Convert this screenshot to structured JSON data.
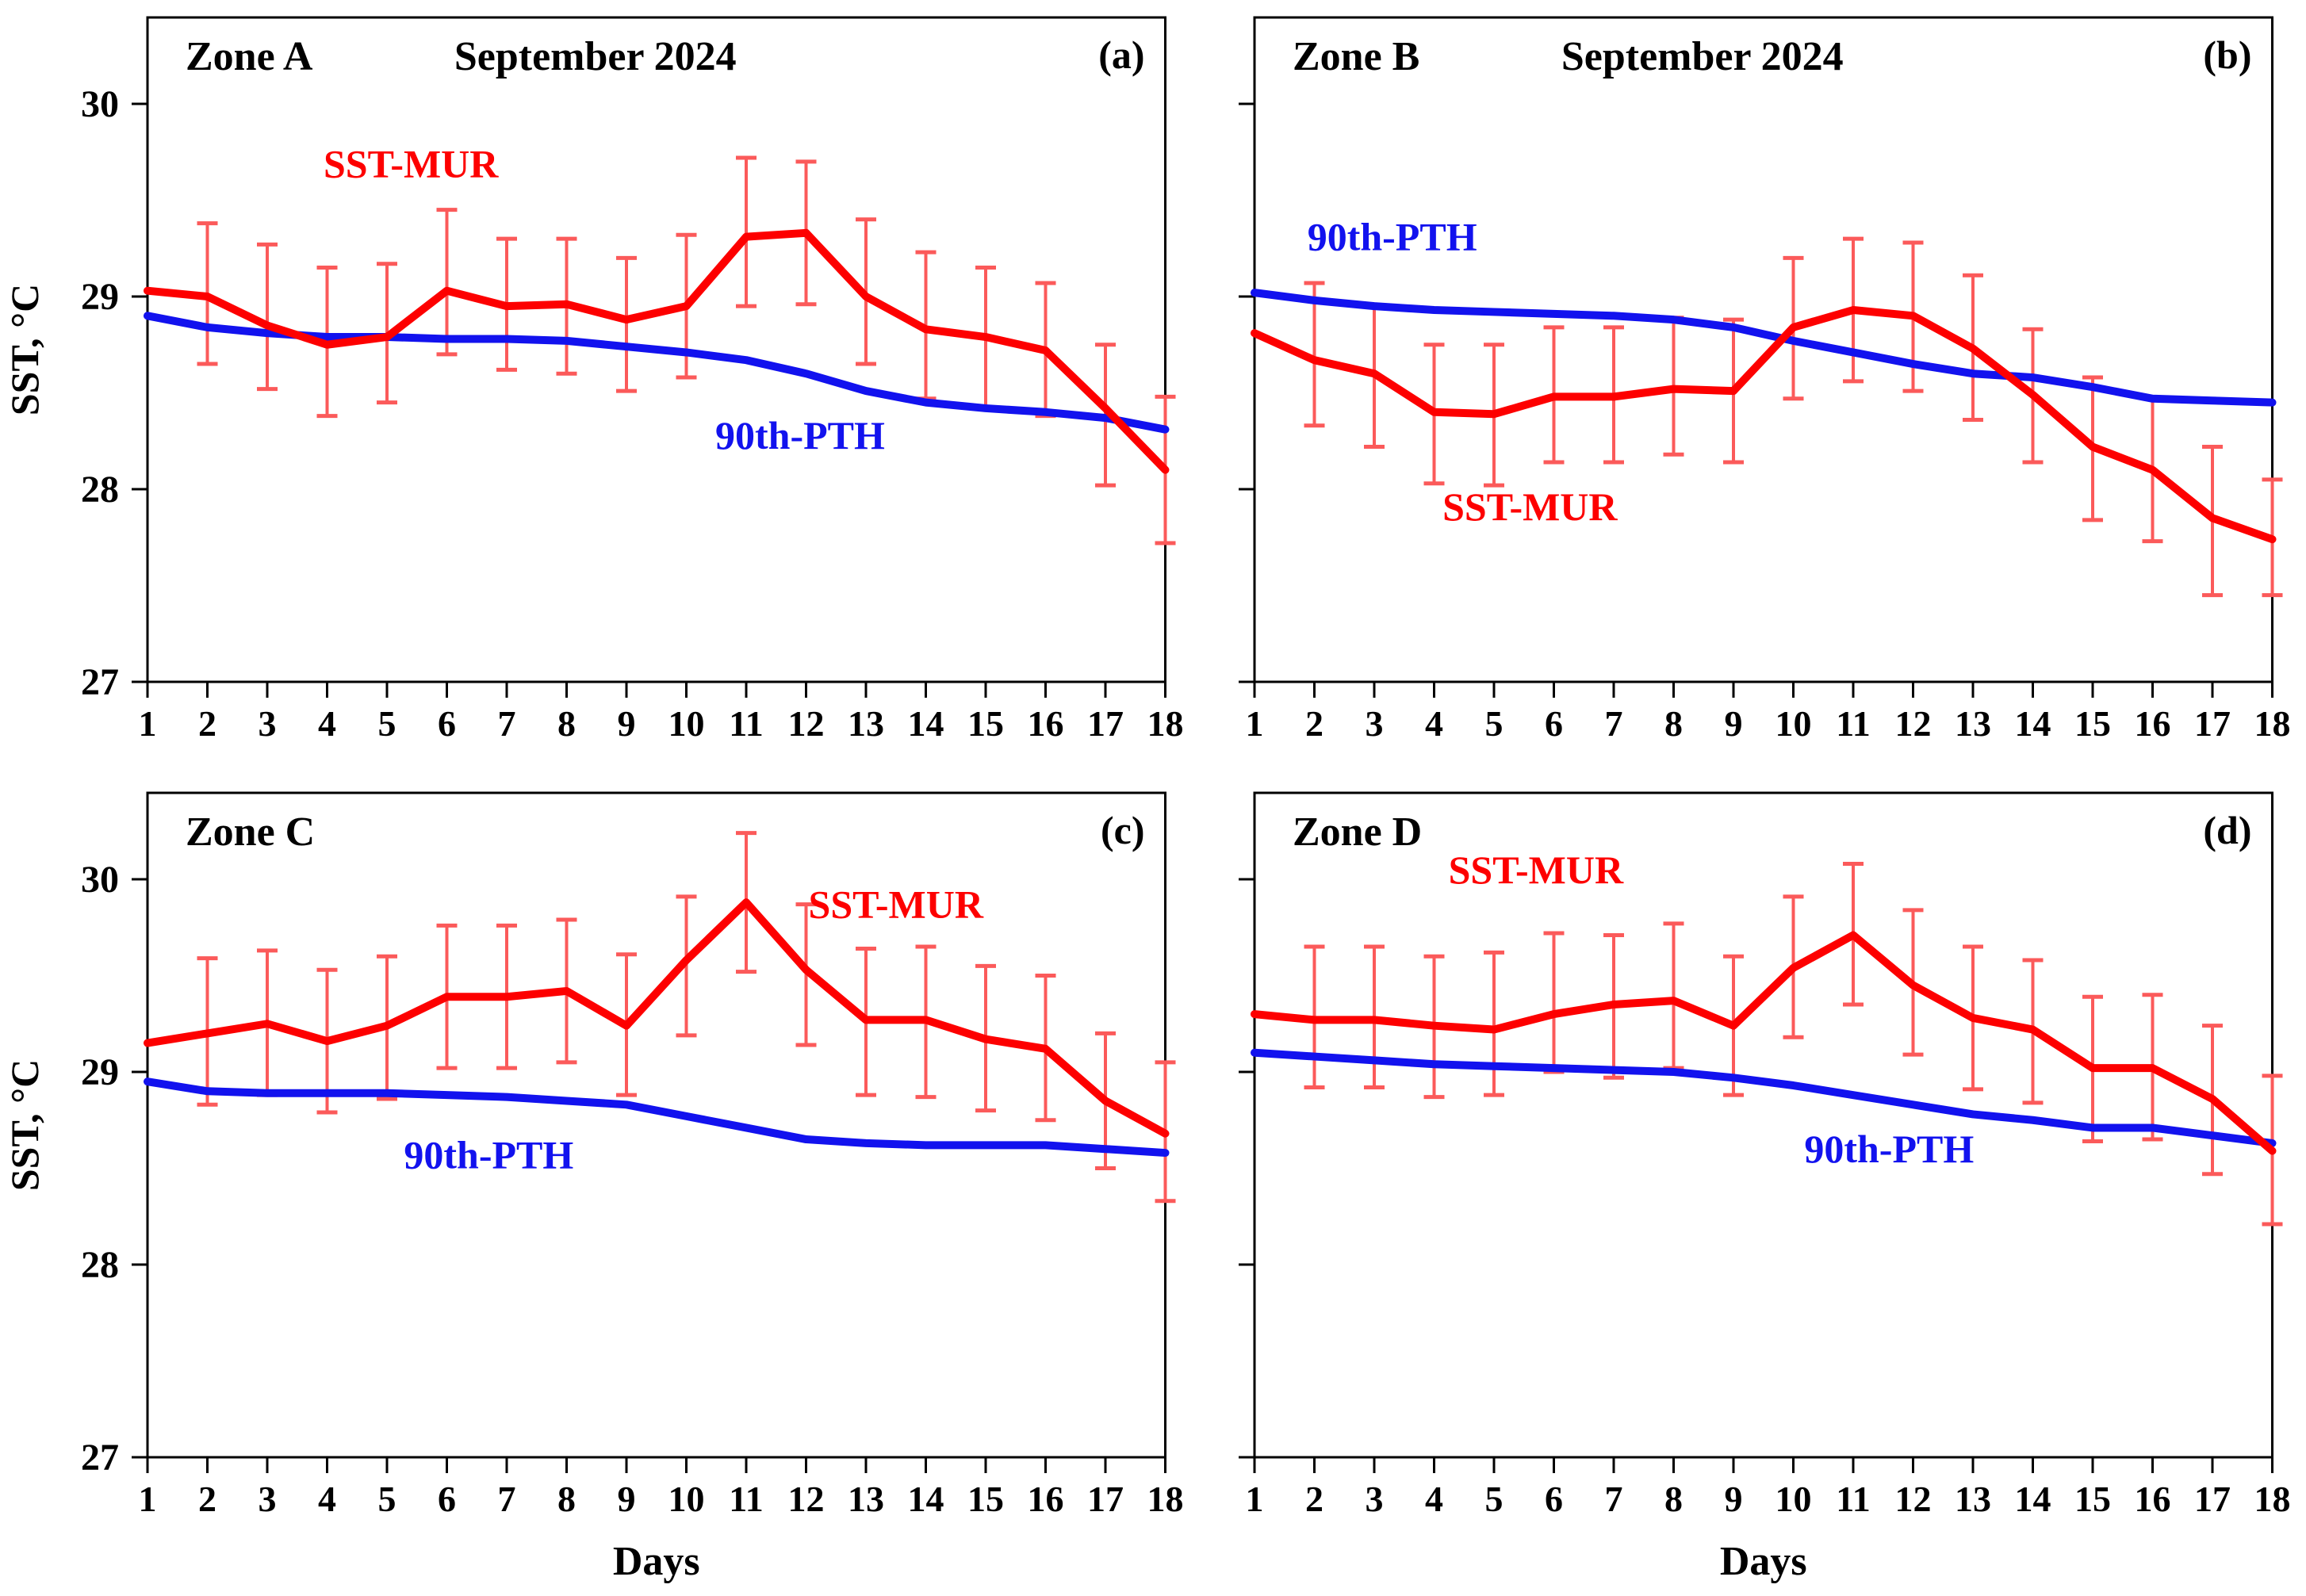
{
  "figure": {
    "y_axis_title": "SST, °C",
    "x_axis_title": "Days",
    "month_label": "September 2024",
    "series_names": {
      "red": "SST-MUR",
      "blue": "90th-PTH"
    },
    "colors": {
      "sst_mur": "#fd0000",
      "pth": "#1212ee",
      "error_bar": "#fb5a5a",
      "frame": "#000000",
      "text": "#000000"
    },
    "yticks": [
      "30",
      "29",
      "28",
      "27"
    ],
    "ytick_values": [
      30,
      29,
      28,
      27
    ],
    "days": [
      "1",
      "2",
      "3",
      "4",
      "5",
      "6",
      "7",
      "8",
      "9",
      "10",
      "11",
      "12",
      "13",
      "14",
      "15",
      "16",
      "17",
      "18"
    ],
    "ylim": [
      27,
      30.45
    ]
  },
  "chart_data": [
    {
      "panel": "a",
      "type": "line",
      "zone": "Zone A",
      "month": "September 2024",
      "letter": "(a)",
      "x": [
        1,
        2,
        3,
        4,
        5,
        6,
        7,
        8,
        9,
        10,
        11,
        12,
        13,
        14,
        15,
        16,
        17,
        18
      ],
      "series": [
        {
          "name": "SST-MUR",
          "color": "#fd0000",
          "values": [
            29.03,
            29.0,
            28.85,
            28.75,
            28.79,
            29.03,
            28.95,
            28.96,
            28.88,
            28.95,
            29.31,
            29.33,
            29.0,
            28.83,
            28.79,
            28.72,
            28.42,
            28.1
          ],
          "err_lo": [
            null,
            28.65,
            28.52,
            28.38,
            28.45,
            28.7,
            28.62,
            28.6,
            28.51,
            28.58,
            28.95,
            28.96,
            28.65,
            28.47,
            28.42,
            28.38,
            28.02,
            27.72
          ],
          "err_hi": [
            null,
            29.38,
            29.27,
            29.15,
            29.17,
            29.45,
            29.3,
            29.3,
            29.2,
            29.32,
            29.72,
            29.7,
            29.4,
            29.23,
            29.15,
            29.07,
            28.75,
            28.48
          ]
        },
        {
          "name": "90th-PTH",
          "color": "#1212ee",
          "values": [
            28.9,
            28.84,
            28.81,
            28.79,
            28.79,
            28.78,
            28.78,
            28.77,
            28.74,
            28.71,
            28.67,
            28.6,
            28.51,
            28.45,
            28.42,
            28.4,
            28.37,
            28.31
          ]
        }
      ],
      "annotations": [
        {
          "text": "SST-MUR",
          "color": "#fd0000",
          "day": 5.4,
          "value": 29.62
        },
        {
          "text": "90th-PTH",
          "color": "#1212ee",
          "day": 11.9,
          "value": 28.21
        }
      ]
    },
    {
      "panel": "b",
      "type": "line",
      "zone": "Zone B",
      "month": "September 2024",
      "letter": "(b)",
      "x": [
        1,
        2,
        3,
        4,
        5,
        6,
        7,
        8,
        9,
        10,
        11,
        12,
        13,
        14,
        15,
        16,
        17,
        18
      ],
      "series": [
        {
          "name": "SST-MUR",
          "color": "#fd0000",
          "values": [
            28.81,
            28.67,
            28.6,
            28.4,
            28.39,
            28.48,
            28.48,
            28.52,
            28.51,
            28.84,
            28.93,
            28.9,
            28.73,
            28.49,
            28.22,
            28.1,
            27.85,
            27.74
          ],
          "err_lo": [
            null,
            28.33,
            28.22,
            28.03,
            28.02,
            28.14,
            28.14,
            28.18,
            28.14,
            28.47,
            28.56,
            28.51,
            28.36,
            28.14,
            27.84,
            27.73,
            27.45,
            27.45
          ],
          "err_hi": [
            null,
            29.07,
            28.95,
            28.75,
            28.75,
            28.84,
            28.84,
            28.89,
            28.88,
            29.2,
            29.3,
            29.28,
            29.11,
            28.83,
            28.58,
            28.47,
            28.22,
            28.05
          ]
        },
        {
          "name": "90th-PTH",
          "color": "#1212ee",
          "values": [
            29.02,
            28.98,
            28.95,
            28.93,
            28.92,
            28.91,
            28.9,
            28.88,
            28.84,
            28.77,
            28.71,
            28.65,
            28.6,
            28.58,
            28.53,
            28.47,
            28.46,
            28.45
          ]
        }
      ],
      "annotations": [
        {
          "text": "90th-PTH",
          "color": "#1212ee",
          "day": 3.3,
          "value": 29.24
        },
        {
          "text": "SST-MUR",
          "color": "#fd0000",
          "day": 5.6,
          "value": 27.84
        }
      ]
    },
    {
      "panel": "c",
      "type": "line",
      "zone": "Zone C",
      "month": "",
      "letter": "(c)",
      "x": [
        1,
        2,
        3,
        4,
        5,
        6,
        7,
        8,
        9,
        10,
        11,
        12,
        13,
        14,
        15,
        16,
        17,
        18
      ],
      "series": [
        {
          "name": "SST-MUR",
          "color": "#fd0000",
          "values": [
            29.15,
            29.2,
            29.25,
            29.16,
            29.24,
            29.39,
            29.39,
            29.42,
            29.24,
            29.58,
            29.88,
            29.53,
            29.27,
            29.27,
            29.17,
            29.12,
            28.85,
            28.68
          ],
          "err_lo": [
            null,
            28.83,
            28.88,
            28.79,
            28.86,
            29.02,
            29.02,
            29.05,
            28.88,
            29.19,
            29.52,
            29.14,
            28.88,
            28.87,
            28.8,
            28.75,
            28.5,
            28.33
          ],
          "err_hi": [
            null,
            29.59,
            29.63,
            29.53,
            29.6,
            29.76,
            29.76,
            29.79,
            29.61,
            29.91,
            30.24,
            29.87,
            29.64,
            29.65,
            29.55,
            29.5,
            29.2,
            29.05
          ]
        },
        {
          "name": "90th-PTH",
          "color": "#1212ee",
          "values": [
            28.95,
            28.9,
            28.89,
            28.89,
            28.89,
            28.88,
            28.87,
            28.85,
            28.83,
            28.77,
            28.71,
            28.65,
            28.63,
            28.62,
            28.62,
            28.62,
            28.6,
            28.58
          ]
        }
      ],
      "annotations": [
        {
          "text": "SST-MUR",
          "color": "#fd0000",
          "day": 13.5,
          "value": 29.8
        },
        {
          "text": "90th-PTH",
          "color": "#1212ee",
          "day": 6.7,
          "value": 28.5
        }
      ]
    },
    {
      "panel": "d",
      "type": "line",
      "zone": "Zone D",
      "month": "",
      "letter": "(d)",
      "x": [
        1,
        2,
        3,
        4,
        5,
        6,
        7,
        8,
        9,
        10,
        11,
        12,
        13,
        14,
        15,
        16,
        17,
        18
      ],
      "series": [
        {
          "name": "SST-MUR",
          "color": "#fd0000",
          "values": [
            29.3,
            29.27,
            29.27,
            29.24,
            29.22,
            29.3,
            29.35,
            29.37,
            29.24,
            29.54,
            29.71,
            29.45,
            29.28,
            29.22,
            29.02,
            29.02,
            28.86,
            28.59
          ],
          "err_lo": [
            null,
            28.92,
            28.92,
            28.87,
            28.88,
            29.0,
            28.97,
            29.02,
            28.88,
            29.18,
            29.35,
            29.09,
            28.91,
            28.84,
            28.64,
            28.65,
            28.47,
            28.21
          ],
          "err_hi": [
            null,
            29.65,
            29.65,
            29.6,
            29.62,
            29.72,
            29.71,
            29.77,
            29.6,
            29.91,
            30.08,
            29.84,
            29.65,
            29.58,
            29.39,
            29.4,
            29.24,
            28.98
          ]
        },
        {
          "name": "90th-PTH",
          "color": "#1212ee",
          "values": [
            29.1,
            29.08,
            29.06,
            29.04,
            29.03,
            29.02,
            29.01,
            29.0,
            28.97,
            28.93,
            28.88,
            28.83,
            28.78,
            28.75,
            28.71,
            28.71,
            28.67,
            28.63
          ]
        }
      ],
      "annotations": [
        {
          "text": "SST-MUR",
          "color": "#fd0000",
          "day": 5.7,
          "value": 29.98
        },
        {
          "text": "90th-PTH",
          "color": "#1212ee",
          "day": 11.6,
          "value": 28.53
        }
      ]
    }
  ]
}
